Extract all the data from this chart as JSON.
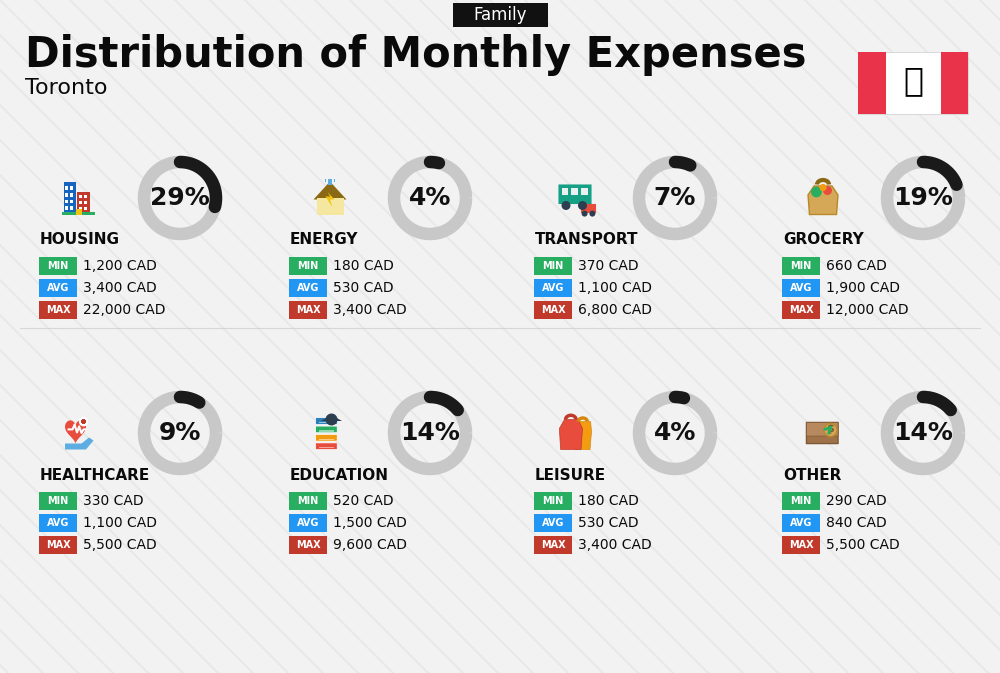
{
  "title": "Distribution of Monthly Expenses",
  "subtitle": "Toronto",
  "tag": "Family",
  "bg_color": "#f2f2f2",
  "categories": [
    {
      "name": "HOUSING",
      "percent": 29,
      "min_val": "1,200 CAD",
      "avg_val": "3,400 CAD",
      "max_val": "22,000 CAD",
      "col": 0,
      "row": 0
    },
    {
      "name": "ENERGY",
      "percent": 4,
      "min_val": "180 CAD",
      "avg_val": "530 CAD",
      "max_val": "3,400 CAD",
      "col": 1,
      "row": 0
    },
    {
      "name": "TRANSPORT",
      "percent": 7,
      "min_val": "370 CAD",
      "avg_val": "1,100 CAD",
      "max_val": "6,800 CAD",
      "col": 2,
      "row": 0
    },
    {
      "name": "GROCERY",
      "percent": 19,
      "min_val": "660 CAD",
      "avg_val": "1,900 CAD",
      "max_val": "12,000 CAD",
      "col": 3,
      "row": 0
    },
    {
      "name": "HEALTHCARE",
      "percent": 9,
      "min_val": "330 CAD",
      "avg_val": "1,100 CAD",
      "max_val": "5,500 CAD",
      "col": 0,
      "row": 1
    },
    {
      "name": "EDUCATION",
      "percent": 14,
      "min_val": "520 CAD",
      "avg_val": "1,500 CAD",
      "max_val": "9,600 CAD",
      "col": 1,
      "row": 1
    },
    {
      "name": "LEISURE",
      "percent": 4,
      "min_val": "180 CAD",
      "avg_val": "530 CAD",
      "max_val": "3,400 CAD",
      "col": 2,
      "row": 1
    },
    {
      "name": "OTHER",
      "percent": 14,
      "min_val": "290 CAD",
      "avg_val": "840 CAD",
      "max_val": "5,500 CAD",
      "col": 3,
      "row": 1
    }
  ],
  "min_color": "#27ae60",
  "avg_color": "#2196f3",
  "max_color": "#c0392b",
  "arc_dark": "#1a1a1a",
  "arc_light": "#c8c8c8",
  "title_fontsize": 30,
  "subtitle_fontsize": 16,
  "tag_fontsize": 12,
  "pct_fontsize": 18,
  "cat_fontsize": 11,
  "val_fontsize": 10,
  "badge_fontsize": 7,
  "stripe_color": "#e0e0e0",
  "flag_red": "#e8334a"
}
